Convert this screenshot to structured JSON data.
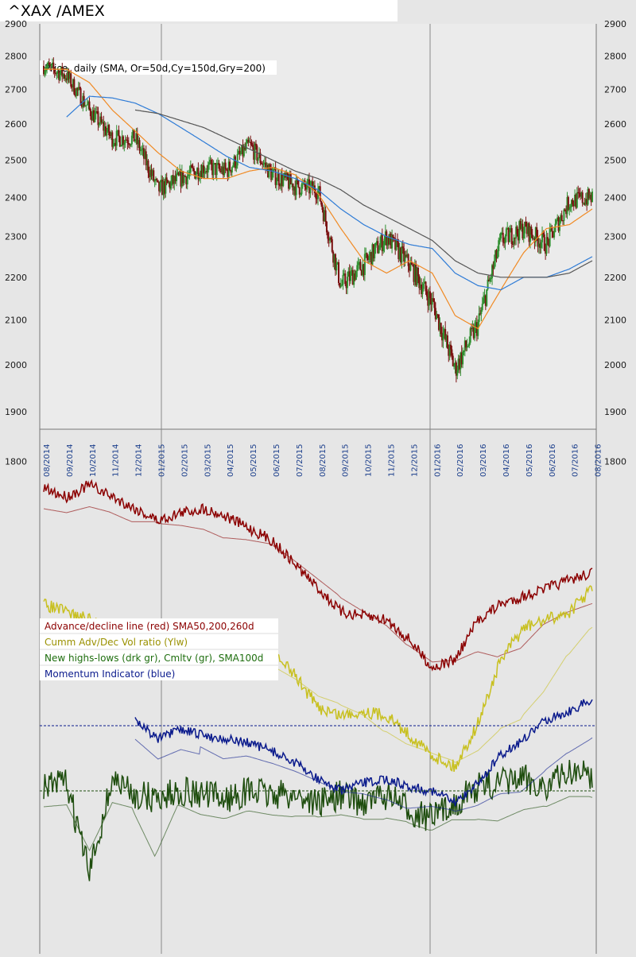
{
  "header": {
    "title": "^XAX /AMEX"
  },
  "colors": {
    "background": "#e6e6e6",
    "plot_background": "#ebebeb",
    "candle_up": "#2f8f2f",
    "candle_down": "#7a1010",
    "sma50": "#f08a24",
    "sma150": "#2e7bd6",
    "sma200": "#555555",
    "ad_line": "#8b0000",
    "ad_sma": "#c03030",
    "vol_ratio": "#c8c020",
    "highs_lows": "#1e4d0e",
    "highs_lows_cum": "#2aa02a",
    "momentum": "#0a1a8c"
  },
  "price_panel": {
    "label": "Price, daily (SMA, Or=50d,Cy=150d,Gry=200)",
    "y_ticks": [
      "2900",
      "2800",
      "2700",
      "2600",
      "2500",
      "2400",
      "2300",
      "2200",
      "2100",
      "2000",
      "1900",
      "1800"
    ],
    "x_labels": [
      "08/2014",
      "09/2014",
      "10/2014",
      "11/2014",
      "12/2014",
      "01/2015",
      "02/2015",
      "03/2015",
      "04/2015",
      "05/2015",
      "06/2015",
      "07/2015",
      "08/2015",
      "09/2015",
      "10/2015",
      "11/2015",
      "12/2015",
      "01/2016",
      "02/2016",
      "03/2016",
      "04/2016",
      "05/2016",
      "06/2016",
      "07/2016",
      "08/2016"
    ]
  },
  "indicator_panel": {
    "legend": [
      {
        "text": "Advance/decline line (red) SMA50,200,260d",
        "color": "#8b0000"
      },
      {
        "text": "Cumm Adv/Dec Vol ratio (Ylw)",
        "color": "#9a9100"
      },
      {
        "text": "New highs-lows (drk gr), Cmltv (gr), SMA100d",
        "color": "#1e6e0e"
      },
      {
        "text": "Momentum Indicator (blue)",
        "color": "#0a1a8c"
      }
    ]
  },
  "chart_data": [
    {
      "type": "line",
      "title": "^XAX /AMEX",
      "subtitle": "Price, daily (SMA, Or=50d,Cy=150d,Gry=200)",
      "x": [
        "08/2014",
        "09/2014",
        "10/2014",
        "11/2014",
        "12/2014",
        "01/2015",
        "02/2015",
        "03/2015",
        "04/2015",
        "05/2015",
        "06/2015",
        "07/2015",
        "08/2015",
        "09/2015",
        "10/2015",
        "11/2015",
        "12/2015",
        "01/2016",
        "02/2016",
        "03/2016",
        "04/2016",
        "05/2016",
        "06/2016",
        "07/2016",
        "08/2016"
      ],
      "series": [
        {
          "name": "Price",
          "values": [
            2770,
            2740,
            2640,
            2560,
            2560,
            2420,
            2450,
            2480,
            2470,
            2540,
            2460,
            2430,
            2420,
            2180,
            2230,
            2300,
            2230,
            2140,
            1990,
            2090,
            2290,
            2320,
            2280,
            2390,
            2400
          ]
        },
        {
          "name": "SMA 50",
          "values": [
            2760,
            2760,
            2720,
            2640,
            2580,
            2520,
            2470,
            2450,
            2450,
            2470,
            2480,
            2460,
            2410,
            2320,
            2240,
            2210,
            2240,
            2210,
            2110,
            2080,
            2170,
            2260,
            2320,
            2330,
            2370
          ]
        },
        {
          "name": "SMA 150",
          "values": [
            null,
            2620,
            2680,
            2675,
            2660,
            2630,
            2590,
            2550,
            2510,
            2480,
            2470,
            2450,
            2420,
            2370,
            2330,
            2300,
            2280,
            2270,
            2210,
            2180,
            2170,
            2200,
            2200,
            2220,
            2250
          ]
        },
        {
          "name": "SMA 200",
          "values": [
            null,
            null,
            null,
            null,
            2640,
            2630,
            2610,
            2590,
            2560,
            2530,
            2500,
            2470,
            2450,
            2420,
            2380,
            2350,
            2320,
            2290,
            2240,
            2210,
            2200,
            2200,
            2200,
            2210,
            2240
          ]
        }
      ],
      "ylim": [
        1870,
        2910
      ],
      "y_scale": "log",
      "grid": false
    },
    {
      "type": "line",
      "series": [
        {
          "name": "Advance/decline line (red)",
          "values": [
            615,
            625,
            610,
            625,
            640,
            655,
            645,
            640,
            650,
            665,
            680,
            710,
            740,
            770,
            775,
            780,
            805,
            840,
            830,
            780,
            760,
            750,
            740,
            730,
            720
          ]
        },
        {
          "name": "Cumm Adv/Dec Vol ratio (Ylw)",
          "values": [
            760,
            770,
            780,
            790,
            795,
            800,
            805,
            805,
            808,
            810,
            820,
            850,
            890,
            900,
            895,
            900,
            925,
            950,
            965,
            910,
            830,
            790,
            780,
            770,
            740
          ]
        },
        {
          "name": "New highs-lows (drk gr)",
          "values": [
            990,
            985,
            1100,
            980,
            1000,
            1005,
            995,
            1000,
            1005,
            995,
            1000,
            1000,
            1010,
            1000,
            1010,
            1000,
            1020,
            1030,
            1010,
            990,
            985,
            980,
            990,
            970,
            975
          ]
        },
        {
          "name": "Momentum Indicator (blue)",
          "values": [
            null,
            null,
            null,
            null,
            905,
            930,
            918,
            925,
            930,
            935,
            945,
            960,
            980,
            995,
            985,
            980,
            990,
            995,
            1010,
            985,
            950,
            930,
            905,
            895,
            880
          ]
        }
      ],
      "ylim": [
        1200,
        560
      ]
    }
  ]
}
